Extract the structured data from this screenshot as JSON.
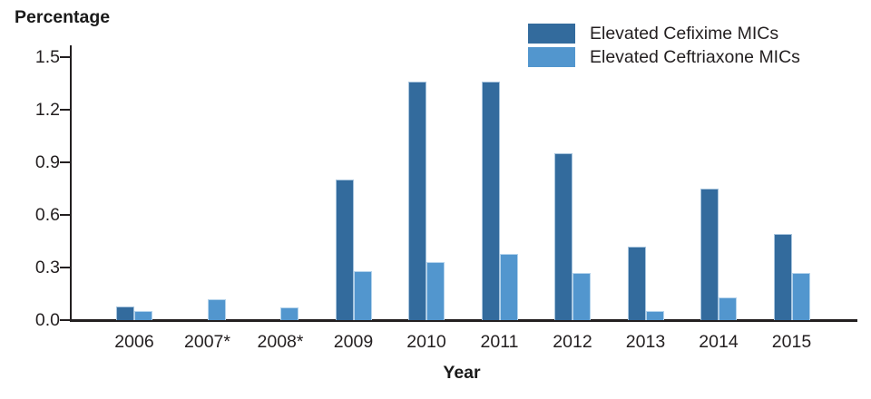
{
  "chart_data": {
    "type": "bar",
    "title": "",
    "ylabel": "Percentage",
    "xlabel": "Year",
    "categories": [
      "2006",
      "2007*",
      "2008*",
      "2009",
      "2010",
      "2011",
      "2012",
      "2013",
      "2014",
      "2015"
    ],
    "series": [
      {
        "name": "Elevated Cefixime MICs",
        "color": "#336B9D",
        "edge_color": "#A7C4DD",
        "values": [
          0.08,
          null,
          null,
          0.8,
          1.36,
          1.36,
          0.95,
          0.42,
          0.75,
          0.49
        ]
      },
      {
        "name": "Elevated Ceftriaxone MICs",
        "color": "#5296CE",
        "edge_color": "#B4D3EC",
        "values": [
          0.05,
          0.12,
          0.07,
          0.28,
          0.33,
          0.38,
          0.27,
          0.05,
          0.13,
          0.27
        ]
      }
    ],
    "ylim": [
      0,
      1.5
    ],
    "yticks": [
      "0.0",
      "0.3",
      "0.6",
      "0.9",
      "1.2",
      "1.5"
    ],
    "grid": false,
    "legend_position": "top-right",
    "axis_color": "#231f20"
  }
}
